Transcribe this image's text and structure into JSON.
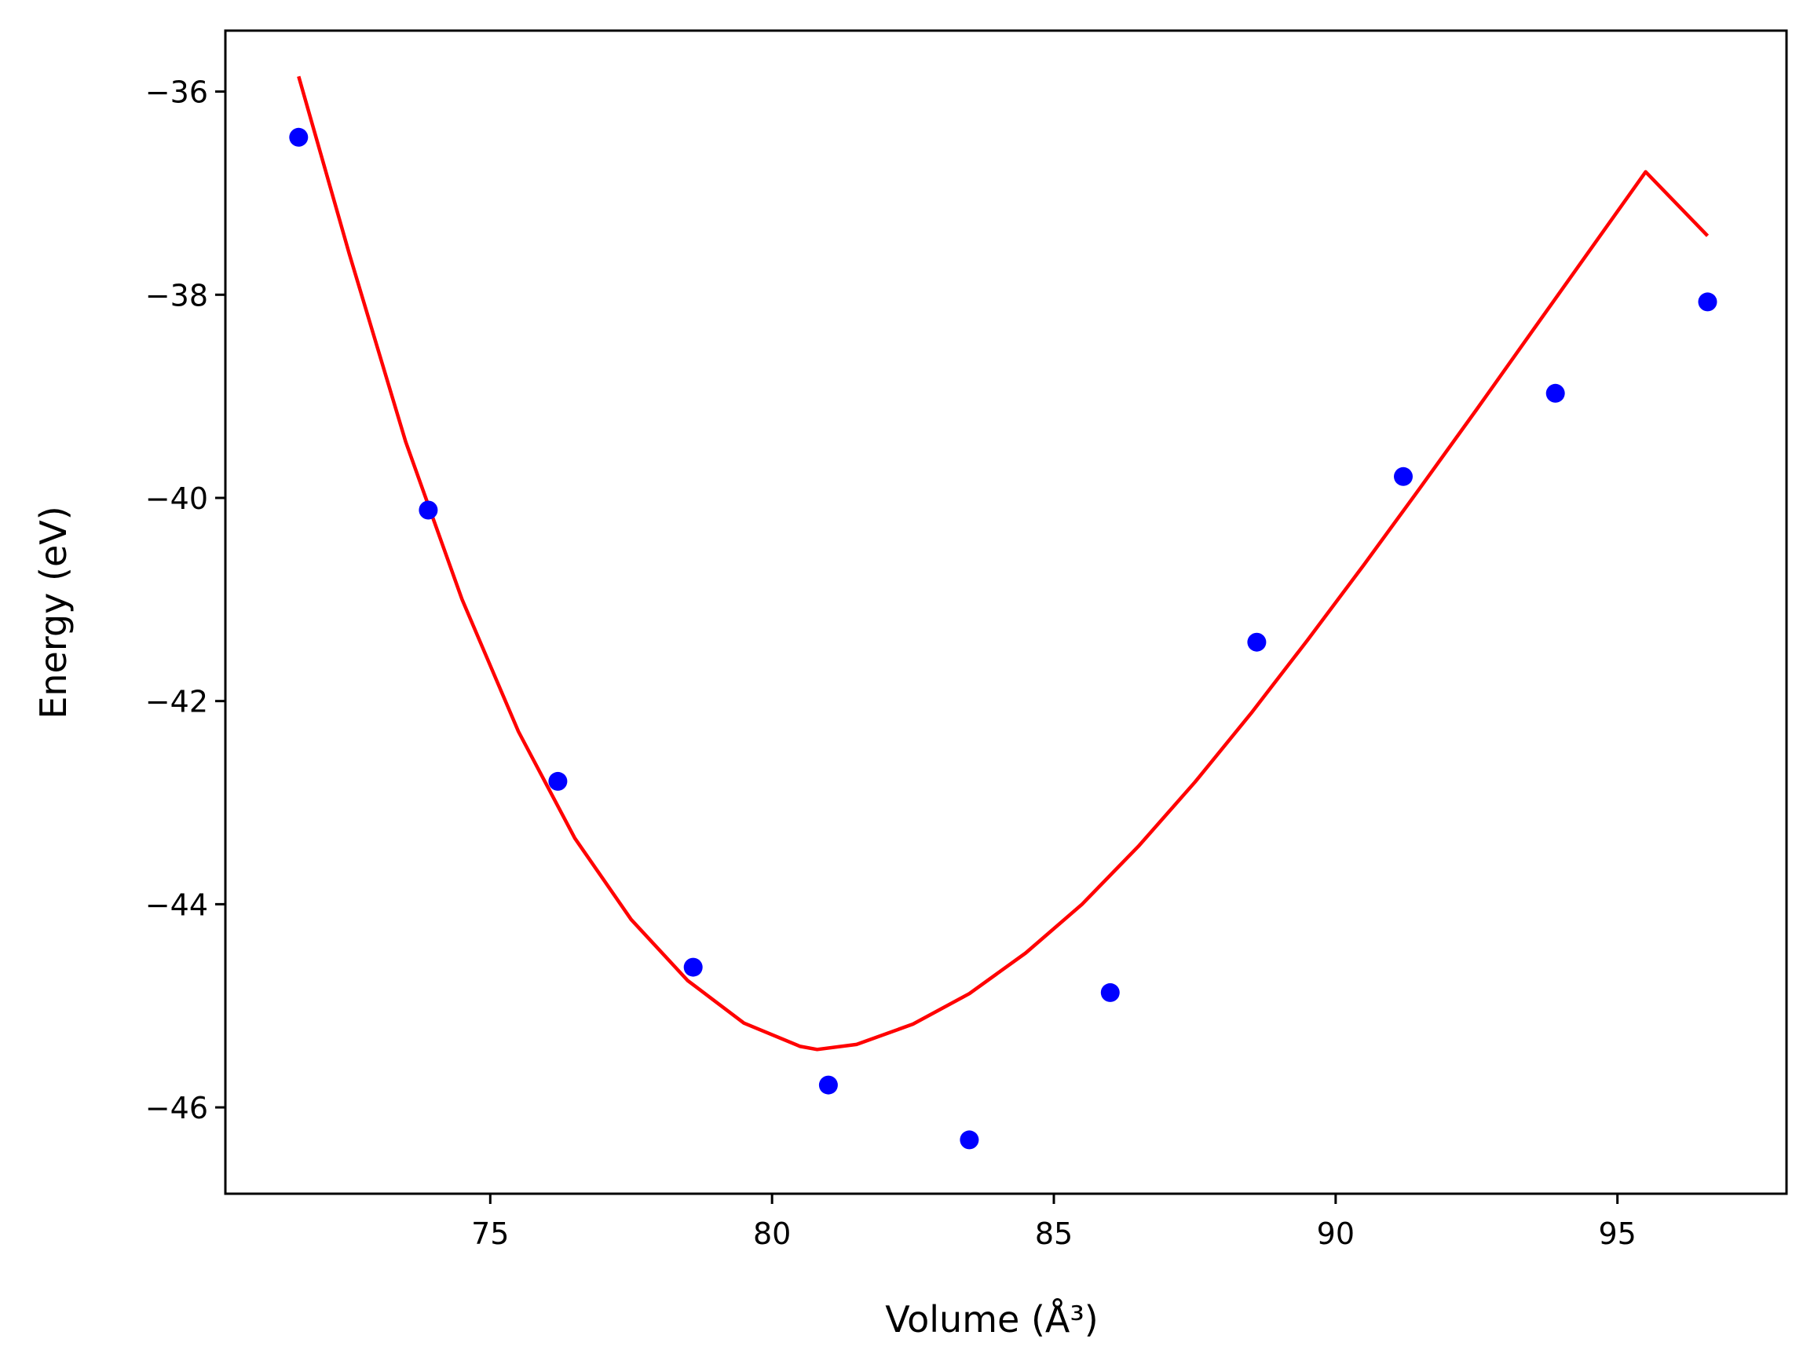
{
  "chart_data": {
    "type": "scatter",
    "title": "",
    "xlabel": "Volume (Å³)",
    "ylabel": "Energy (eV)",
    "xlim": [
      70.3,
      98.0
    ],
    "ylim": [
      -46.85,
      -35.4
    ],
    "xticks": [
      75,
      80,
      85,
      90,
      95
    ],
    "yticks": [
      -36,
      -38,
      -40,
      -42,
      -44,
      -46
    ],
    "xtick_labels": [
      "75",
      "80",
      "85",
      "90",
      "95"
    ],
    "ytick_labels": [
      "−36",
      "−38",
      "−40",
      "−42",
      "−44",
      "−46"
    ],
    "grid": false,
    "legend": "none",
    "series": [
      {
        "kind": "points",
        "color": "#0000ff",
        "x": [
          71.6,
          73.9,
          76.2,
          78.6,
          81.0,
          83.5,
          86.0,
          88.6,
          91.2,
          93.9,
          96.6
        ],
        "y": [
          -36.45,
          -40.12,
          -42.79,
          -44.62,
          -45.78,
          -46.32,
          -44.87,
          -41.42,
          -39.79,
          -38.97,
          -38.07
        ]
      },
      {
        "kind": "fit-line",
        "color": "#ff0000",
        "x": [
          71.6,
          72.5,
          73.5,
          74.5,
          75.5,
          76.5,
          77.5,
          78.5,
          79.5,
          80.5,
          80.8,
          81.5,
          82.5,
          83.5,
          84.5,
          85.5,
          86.5,
          87.5,
          88.5,
          89.5,
          90.5,
          91.5,
          92.5,
          93.5,
          94.5,
          95.5,
          96.6
        ],
        "y": [
          -35.85,
          -37.6,
          -39.45,
          -41.0,
          -42.3,
          -43.35,
          -44.15,
          -44.75,
          -45.17,
          -45.4,
          -45.43,
          -45.38,
          -45.18,
          -44.88,
          -44.48,
          -44.0,
          -43.43,
          -42.8,
          -42.12,
          -41.4,
          -40.66,
          -39.9,
          -39.13,
          -38.35,
          -37.57,
          -36.79,
          -37.42
        ]
      }
    ]
  }
}
